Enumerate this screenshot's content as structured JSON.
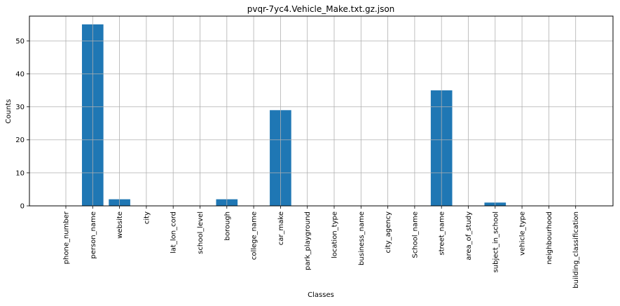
{
  "chart_data": {
    "type": "bar",
    "title": "pvqr-7yc4.Vehicle_Make.txt.gz.json",
    "xlabel": "Classes",
    "ylabel": "Counts",
    "categories": [
      "phone_number",
      "person_name",
      "website",
      "city",
      "lat_lon_cord",
      "school_level",
      "borough",
      "college_name",
      "car_make",
      "park_playground",
      "location_type",
      "business_name",
      "city_agency",
      "School_name",
      "street_name",
      "area_of_study",
      "subject_in_school",
      "vehicle_type",
      "neighbourhood",
      "building_classification"
    ],
    "values": [
      0,
      55,
      2,
      0,
      0,
      0,
      2,
      0,
      29,
      0,
      0,
      0,
      0,
      0,
      35,
      0,
      1,
      0,
      0,
      0
    ],
    "ylim": [
      0,
      57.5
    ],
    "yticks": [
      0,
      10,
      20,
      30,
      40,
      50
    ],
    "grid": true,
    "bar_color": "#1f77b4",
    "grid_color": "#b0b0b0"
  }
}
